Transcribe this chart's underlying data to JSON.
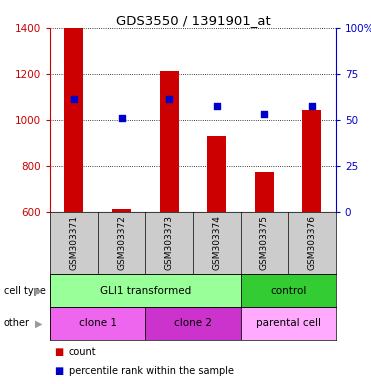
{
  "title": "GDS3550 / 1391901_at",
  "samples": [
    "GSM303371",
    "GSM303372",
    "GSM303373",
    "GSM303374",
    "GSM303375",
    "GSM303376"
  ],
  "bar_heights": [
    1400,
    615,
    1215,
    930,
    775,
    1045
  ],
  "percentile_ranks": [
    1090,
    1010,
    1090,
    1060,
    1025,
    1060
  ],
  "ylim": [
    600,
    1400
  ],
  "yticks_left": [
    600,
    800,
    1000,
    1200,
    1400
  ],
  "yticks_right_vals": [
    0,
    25,
    50,
    75,
    100
  ],
  "yticks_right_labels": [
    "0",
    "25",
    "50",
    "75",
    "100%"
  ],
  "bar_color": "#cc0000",
  "dot_color": "#0000cc",
  "cell_type_labels": [
    {
      "label": "GLI1 transformed",
      "start": 0,
      "end": 4,
      "color": "#99ff99"
    },
    {
      "label": "control",
      "start": 4,
      "end": 6,
      "color": "#33cc33"
    }
  ],
  "other_labels": [
    {
      "label": "clone 1",
      "start": 0,
      "end": 2,
      "color": "#ee66ee"
    },
    {
      "label": "clone 2",
      "start": 2,
      "end": 4,
      "color": "#cc33cc"
    },
    {
      "label": "parental cell",
      "start": 4,
      "end": 6,
      "color": "#ffaaff"
    }
  ],
  "row_label_cell_type": "cell type",
  "row_label_other": "other",
  "legend_count": "count",
  "legend_percentile": "percentile rank within the sample",
  "background_color": "#ffffff",
  "grid_color": "#888888",
  "sample_bg_color": "#cccccc"
}
